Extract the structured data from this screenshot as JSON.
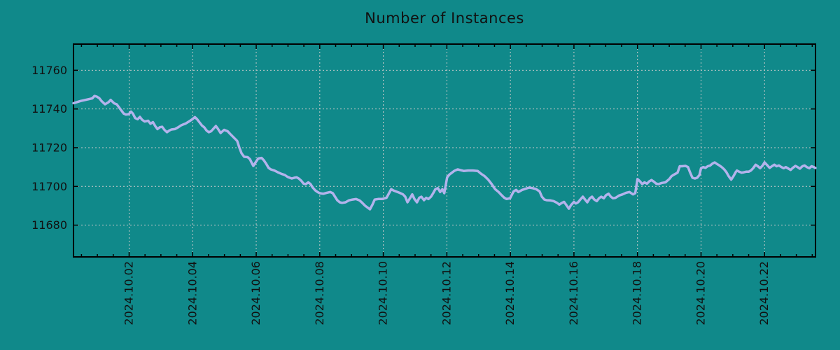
{
  "chart_data": {
    "type": "line",
    "title": "Number of Instances",
    "xlabel": "",
    "ylabel": "",
    "grid": true,
    "legend": null,
    "colors": {
      "background": "#10898a",
      "line": "#b3b3ec",
      "grid": "#c9c9c9",
      "axis": "#000000",
      "text": "#111111"
    },
    "x_axis": {
      "unit": "date",
      "range_days": [
        0.249,
        23.603
      ],
      "tick_days": [
        2,
        4,
        6,
        8,
        10,
        12,
        14,
        16,
        18,
        20,
        22
      ],
      "tick_labels": [
        "2024.10.02",
        "2024.10.04",
        "2024.10.06",
        "2024.10.08",
        "2024.10.10",
        "2024.10.12",
        "2024.10.14",
        "2024.10.16",
        "2024.10.18",
        "2024.10.20",
        "2024.10.22"
      ],
      "minor_tick_interval_days": 0.5
    },
    "y_axis": {
      "range": [
        11663.6,
        11773.5
      ],
      "ticks": [
        11680,
        11700,
        11720,
        11740,
        11760
      ],
      "tick_labels": [
        "11680",
        "11700",
        "11720",
        "11740",
        "11760"
      ]
    },
    "series": [
      {
        "name": "instances",
        "points": [
          [
            0.25,
            11743.0
          ],
          [
            0.47,
            11744.1
          ],
          [
            0.69,
            11744.9
          ],
          [
            0.84,
            11745.5
          ],
          [
            0.91,
            11746.7
          ],
          [
            0.98,
            11746.4
          ],
          [
            1.06,
            11745.6
          ],
          [
            1.13,
            11744.1
          ],
          [
            1.24,
            11742.4
          ],
          [
            1.35,
            11743.5
          ],
          [
            1.42,
            11744.7
          ],
          [
            1.53,
            11742.9
          ],
          [
            1.61,
            11742.4
          ],
          [
            1.72,
            11740.0
          ],
          [
            1.83,
            11737.6
          ],
          [
            1.9,
            11737.1
          ],
          [
            1.99,
            11737.3
          ],
          [
            2.06,
            11738.6
          ],
          [
            2.12,
            11737.6
          ],
          [
            2.19,
            11735.3
          ],
          [
            2.27,
            11734.7
          ],
          [
            2.34,
            11735.9
          ],
          [
            2.41,
            11734.4
          ],
          [
            2.49,
            11733.5
          ],
          [
            2.6,
            11733.9
          ],
          [
            2.67,
            11732.4
          ],
          [
            2.75,
            11733.2
          ],
          [
            2.82,
            11731.2
          ],
          [
            2.89,
            11729.6
          ],
          [
            2.97,
            11730.6
          ],
          [
            3.04,
            11730.8
          ],
          [
            3.11,
            11729.2
          ],
          [
            3.19,
            11728.0
          ],
          [
            3.26,
            11728.8
          ],
          [
            3.33,
            11729.4
          ],
          [
            3.44,
            11729.6
          ],
          [
            3.55,
            11730.6
          ],
          [
            3.63,
            11731.5
          ],
          [
            3.7,
            11732.0
          ],
          [
            3.77,
            11732.4
          ],
          [
            3.85,
            11733.2
          ],
          [
            3.92,
            11733.9
          ],
          [
            3.99,
            11734.7
          ],
          [
            4.07,
            11735.8
          ],
          [
            4.14,
            11734.7
          ],
          [
            4.21,
            11733.2
          ],
          [
            4.29,
            11731.5
          ],
          [
            4.36,
            11730.6
          ],
          [
            4.44,
            11728.8
          ],
          [
            4.51,
            11728.0
          ],
          [
            4.58,
            11728.5
          ],
          [
            4.66,
            11729.9
          ],
          [
            4.73,
            11731.2
          ],
          [
            4.8,
            11729.6
          ],
          [
            4.88,
            11727.6
          ],
          [
            4.99,
            11729.2
          ],
          [
            5.1,
            11728.5
          ],
          [
            5.18,
            11727.1
          ],
          [
            5.29,
            11725.3
          ],
          [
            5.4,
            11723.5
          ],
          [
            5.47,
            11720.0
          ],
          [
            5.54,
            11717.1
          ],
          [
            5.62,
            11715.3
          ],
          [
            5.73,
            11715.1
          ],
          [
            5.8,
            11714.1
          ],
          [
            5.87,
            11711.8
          ],
          [
            5.91,
            11710.6
          ],
          [
            5.98,
            11712.4
          ],
          [
            6.06,
            11714.4
          ],
          [
            6.17,
            11714.7
          ],
          [
            6.24,
            11713.5
          ],
          [
            6.31,
            11711.8
          ],
          [
            6.39,
            11709.6
          ],
          [
            6.46,
            11708.8
          ],
          [
            6.57,
            11708.2
          ],
          [
            6.68,
            11707.3
          ],
          [
            6.79,
            11706.5
          ],
          [
            6.9,
            11705.9
          ],
          [
            6.98,
            11705.0
          ],
          [
            7.05,
            11704.5
          ],
          [
            7.12,
            11704.1
          ],
          [
            7.2,
            11704.5
          ],
          [
            7.27,
            11704.7
          ],
          [
            7.34,
            11704.1
          ],
          [
            7.42,
            11702.9
          ],
          [
            7.49,
            11701.4
          ],
          [
            7.56,
            11701.2
          ],
          [
            7.64,
            11702.1
          ],
          [
            7.71,
            11701.2
          ],
          [
            7.78,
            11699.4
          ],
          [
            7.86,
            11697.9
          ],
          [
            7.93,
            11697.1
          ],
          [
            8.0,
            11696.5
          ],
          [
            8.11,
            11696.2
          ],
          [
            8.22,
            11696.7
          ],
          [
            8.33,
            11697.1
          ],
          [
            8.41,
            11696.5
          ],
          [
            8.48,
            11694.7
          ],
          [
            8.55,
            11692.9
          ],
          [
            8.63,
            11691.8
          ],
          [
            8.7,
            11691.5
          ],
          [
            8.81,
            11691.8
          ],
          [
            8.92,
            11692.8
          ],
          [
            9.03,
            11693.2
          ],
          [
            9.14,
            11693.5
          ],
          [
            9.25,
            11692.8
          ],
          [
            9.32,
            11691.8
          ],
          [
            9.43,
            11690.0
          ],
          [
            9.58,
            11688.2
          ],
          [
            9.66,
            11690.6
          ],
          [
            9.73,
            11693.2
          ],
          [
            9.84,
            11693.5
          ],
          [
            9.96,
            11693.5
          ],
          [
            10.1,
            11694.1
          ],
          [
            10.18,
            11696.5
          ],
          [
            10.25,
            11698.6
          ],
          [
            10.32,
            11697.9
          ],
          [
            10.4,
            11697.4
          ],
          [
            10.51,
            11696.7
          ],
          [
            10.62,
            11695.9
          ],
          [
            10.69,
            11694.7
          ],
          [
            10.76,
            11691.8
          ],
          [
            10.84,
            11693.9
          ],
          [
            10.91,
            11695.9
          ],
          [
            10.98,
            11693.5
          ],
          [
            11.06,
            11691.8
          ],
          [
            11.13,
            11694.1
          ],
          [
            11.2,
            11694.7
          ],
          [
            11.28,
            11692.9
          ],
          [
            11.35,
            11694.1
          ],
          [
            11.42,
            11693.5
          ],
          [
            11.5,
            11694.7
          ],
          [
            11.57,
            11696.5
          ],
          [
            11.64,
            11698.6
          ],
          [
            11.72,
            11699.1
          ],
          [
            11.79,
            11697.1
          ],
          [
            11.86,
            11698.6
          ],
          [
            11.92,
            11696.5
          ],
          [
            12.01,
            11704.7
          ],
          [
            12.08,
            11706.1
          ],
          [
            12.16,
            11707.1
          ],
          [
            12.23,
            11708.0
          ],
          [
            12.34,
            11708.8
          ],
          [
            12.41,
            11708.5
          ],
          [
            12.53,
            11708.0
          ],
          [
            12.67,
            11708.2
          ],
          [
            12.82,
            11708.2
          ],
          [
            12.97,
            11708.0
          ],
          [
            13.08,
            11706.5
          ],
          [
            13.19,
            11705.3
          ],
          [
            13.3,
            11703.5
          ],
          [
            13.41,
            11701.2
          ],
          [
            13.52,
            11698.6
          ],
          [
            13.63,
            11697.1
          ],
          [
            13.7,
            11695.9
          ],
          [
            13.81,
            11694.1
          ],
          [
            13.88,
            11693.5
          ],
          [
            13.99,
            11693.9
          ],
          [
            14.1,
            11697.4
          ],
          [
            14.18,
            11698.2
          ],
          [
            14.25,
            11697.1
          ],
          [
            14.37,
            11698.2
          ],
          [
            14.48,
            11698.8
          ],
          [
            14.59,
            11699.4
          ],
          [
            14.7,
            11699.1
          ],
          [
            14.81,
            11698.6
          ],
          [
            14.92,
            11697.4
          ],
          [
            14.99,
            11694.7
          ],
          [
            15.07,
            11693.2
          ],
          [
            15.14,
            11692.9
          ],
          [
            15.25,
            11692.8
          ],
          [
            15.36,
            11692.4
          ],
          [
            15.47,
            11691.5
          ],
          [
            15.54,
            11690.6
          ],
          [
            15.62,
            11691.5
          ],
          [
            15.69,
            11692.0
          ],
          [
            15.76,
            11690.4
          ],
          [
            15.84,
            11688.5
          ],
          [
            15.91,
            11690.4
          ],
          [
            16.0,
            11692.0
          ],
          [
            16.06,
            11691.2
          ],
          [
            16.13,
            11691.8
          ],
          [
            16.2,
            11693.2
          ],
          [
            16.28,
            11694.7
          ],
          [
            16.35,
            11693.2
          ],
          [
            16.42,
            11691.8
          ],
          [
            16.5,
            11693.9
          ],
          [
            16.57,
            11694.7
          ],
          [
            16.64,
            11693.2
          ],
          [
            16.72,
            11692.4
          ],
          [
            16.79,
            11693.9
          ],
          [
            16.86,
            11694.7
          ],
          [
            16.94,
            11693.9
          ],
          [
            17.01,
            11695.5
          ],
          [
            17.09,
            11696.2
          ],
          [
            17.16,
            11694.7
          ],
          [
            17.23,
            11693.9
          ],
          [
            17.31,
            11694.1
          ],
          [
            17.42,
            11695.3
          ],
          [
            17.53,
            11695.9
          ],
          [
            17.64,
            11696.7
          ],
          [
            17.75,
            11697.1
          ],
          [
            17.86,
            11695.9
          ],
          [
            17.93,
            11696.5
          ],
          [
            18.0,
            11703.8
          ],
          [
            18.08,
            11702.6
          ],
          [
            18.15,
            11701.2
          ],
          [
            18.22,
            11702.1
          ],
          [
            18.3,
            11701.4
          ],
          [
            18.37,
            11702.6
          ],
          [
            18.44,
            11703.3
          ],
          [
            18.52,
            11702.4
          ],
          [
            18.59,
            11701.4
          ],
          [
            18.66,
            11701.2
          ],
          [
            18.77,
            11701.8
          ],
          [
            18.88,
            11702.1
          ],
          [
            19.0,
            11703.8
          ],
          [
            19.07,
            11705.3
          ],
          [
            19.15,
            11706.1
          ],
          [
            19.26,
            11707.1
          ],
          [
            19.33,
            11710.4
          ],
          [
            19.4,
            11710.4
          ],
          [
            19.51,
            11710.6
          ],
          [
            19.59,
            11710.0
          ],
          [
            19.66,
            11707.1
          ],
          [
            19.73,
            11704.5
          ],
          [
            19.81,
            11704.1
          ],
          [
            19.88,
            11704.5
          ],
          [
            19.95,
            11705.9
          ],
          [
            20.0,
            11709.4
          ],
          [
            20.07,
            11710.0
          ],
          [
            20.14,
            11709.6
          ],
          [
            20.21,
            11710.4
          ],
          [
            20.29,
            11710.8
          ],
          [
            20.36,
            11711.8
          ],
          [
            20.43,
            11712.4
          ],
          [
            20.51,
            11711.5
          ],
          [
            20.58,
            11710.8
          ],
          [
            20.65,
            11710.0
          ],
          [
            20.73,
            11708.8
          ],
          [
            20.8,
            11707.3
          ],
          [
            20.87,
            11705.3
          ],
          [
            20.95,
            11703.5
          ],
          [
            21.02,
            11705.3
          ],
          [
            21.09,
            11707.3
          ],
          [
            21.13,
            11708.2
          ],
          [
            21.2,
            11707.6
          ],
          [
            21.28,
            11707.1
          ],
          [
            21.35,
            11707.3
          ],
          [
            21.42,
            11707.6
          ],
          [
            21.5,
            11707.6
          ],
          [
            21.57,
            11708.2
          ],
          [
            21.64,
            11709.4
          ],
          [
            21.72,
            11711.2
          ],
          [
            21.79,
            11710.4
          ],
          [
            21.86,
            11709.4
          ],
          [
            21.94,
            11710.8
          ],
          [
            22.0,
            11712.4
          ],
          [
            22.07,
            11711.2
          ],
          [
            22.16,
            11709.6
          ],
          [
            22.23,
            11710.4
          ],
          [
            22.31,
            11711.2
          ],
          [
            22.38,
            11710.4
          ],
          [
            22.45,
            11710.8
          ],
          [
            22.53,
            11710.0
          ],
          [
            22.6,
            11709.4
          ],
          [
            22.67,
            11710.0
          ],
          [
            22.75,
            11709.2
          ],
          [
            22.82,
            11708.5
          ],
          [
            22.89,
            11709.6
          ],
          [
            22.97,
            11710.6
          ],
          [
            23.04,
            11710.0
          ],
          [
            23.11,
            11709.2
          ],
          [
            23.19,
            11710.4
          ],
          [
            23.26,
            11710.8
          ],
          [
            23.33,
            11710.0
          ],
          [
            23.41,
            11709.4
          ],
          [
            23.48,
            11710.4
          ],
          [
            23.55,
            11710.0
          ],
          [
            23.6,
            11709.5
          ]
        ]
      }
    ]
  }
}
